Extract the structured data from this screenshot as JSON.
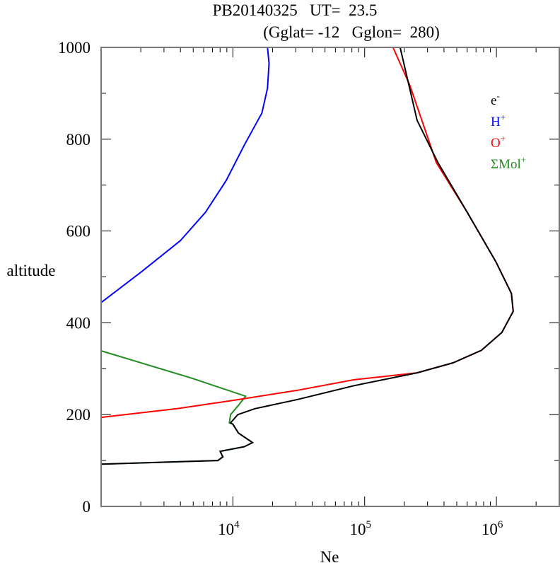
{
  "chart_data": {
    "type": "line",
    "title": "PB20140325   UT=  23.5",
    "subtitle": "(Gglat= -12   Gglon=  280)",
    "xlabel": "Ne",
    "ylabel": "altitude",
    "xscale": "log",
    "xlim": [
      1000,
      3000000
    ],
    "ylim": [
      0,
      1000
    ],
    "x_tick_labels": [
      {
        "base": "10",
        "exp": "4",
        "value": 10000
      },
      {
        "base": "10",
        "exp": "5",
        "value": 100000
      },
      {
        "base": "10",
        "exp": "6",
        "value": 1000000
      }
    ],
    "y_ticks": [
      "0",
      "200",
      "400",
      "600",
      "800",
      "1000"
    ],
    "grid": false,
    "legend_placement": "top-right",
    "series": [
      {
        "name": "e",
        "sup": "-",
        "color": "#000000",
        "points": [
          [
            1000,
            92
          ],
          [
            7700,
            100
          ],
          [
            8400,
            108
          ],
          [
            8000,
            120
          ],
          [
            12200,
            130
          ],
          [
            14100,
            139
          ],
          [
            11000,
            160
          ],
          [
            10000,
            179
          ],
          [
            9600,
            182
          ],
          [
            10900,
            200
          ],
          [
            14700,
            213
          ],
          [
            31000,
            233
          ],
          [
            83000,
            263
          ],
          [
            250000,
            291
          ],
          [
            470000,
            313
          ],
          [
            770000,
            340
          ],
          [
            1100000,
            379
          ],
          [
            1340000,
            425
          ],
          [
            1300000,
            464
          ],
          [
            990000,
            533
          ],
          [
            600000,
            641
          ],
          [
            360000,
            749
          ],
          [
            250000,
            841
          ],
          [
            186000,
            1000
          ]
        ]
      },
      {
        "name": "H",
        "sup": "+",
        "color": "#0000ff",
        "points": [
          [
            1000,
            444
          ],
          [
            2000,
            510
          ],
          [
            4000,
            579
          ],
          [
            6200,
            641
          ],
          [
            8900,
            710
          ],
          [
            12200,
            787
          ],
          [
            16600,
            857
          ],
          [
            18300,
            911
          ],
          [
            18800,
            965
          ],
          [
            18300,
            1000
          ]
        ]
      },
      {
        "name": "O",
        "sup": "+",
        "color": "#ff0000",
        "points": [
          [
            1000,
            194
          ],
          [
            3760,
            213
          ],
          [
            10000,
            231
          ],
          [
            31000,
            253
          ],
          [
            83000,
            276
          ],
          [
            250000,
            291
          ],
          [
            470000,
            313
          ],
          [
            770000,
            340
          ],
          [
            1100000,
            379
          ],
          [
            1340000,
            425
          ],
          [
            1300000,
            464
          ],
          [
            990000,
            533
          ],
          [
            600000,
            641
          ],
          [
            350000,
            749
          ],
          [
            220000,
            918
          ],
          [
            164000,
            1000
          ]
        ]
      },
      {
        "name": "ΣMol",
        "sup": "+",
        "color": "#228b22",
        "points": [
          [
            1000,
            92
          ],
          [
            7700,
            100
          ],
          [
            8400,
            108
          ],
          [
            8000,
            120
          ],
          [
            12200,
            130
          ],
          [
            14100,
            139
          ],
          [
            11000,
            160
          ],
          [
            10000,
            179
          ],
          [
            9400,
            182
          ],
          [
            9600,
            200
          ],
          [
            11000,
            220
          ],
          [
            12500,
            240
          ],
          [
            4800,
            280
          ],
          [
            1000,
            339
          ]
        ]
      }
    ]
  }
}
